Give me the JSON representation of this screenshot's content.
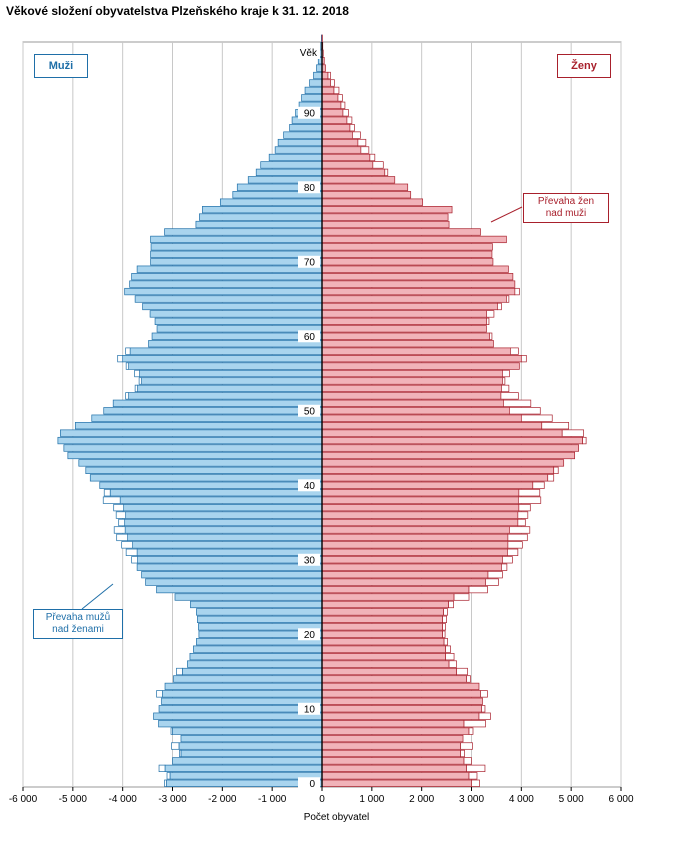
{
  "title": "Věkové složení obyvatelstva Plzeňského kraje k 31. 12. 2018",
  "legend": {
    "male": "Muži",
    "female": "Ženy",
    "male_color": "#a9d4ee",
    "female_color": "#f1b3b9",
    "male_edge": "#1f6fa8",
    "female_edge": "#a8202c"
  },
  "annotations": {
    "female_surplus": [
      "Převaha žen",
      "nad muži"
    ],
    "male_surplus": [
      "Převaha mužů",
      "nad ženami"
    ]
  },
  "chart_data": {
    "type": "bar",
    "orientation": "horizontal-population-pyramid",
    "title": "Věkové složení obyvatelstva Plzeňského kraje k 31. 12. 2018",
    "xlabel": "Počet obyvatel",
    "ylabel": "Věk",
    "xlim": [
      -6000,
      6000
    ],
    "ylim": [
      0,
      100
    ],
    "x_ticks": [
      -6000,
      -5000,
      -4000,
      -3000,
      -2000,
      -1000,
      0,
      1000,
      2000,
      3000,
      4000,
      5000,
      6000
    ],
    "x_tick_labels": [
      "-6 000",
      "-5 000",
      "-4 000",
      "-3 000",
      "-2 000",
      "-1 000",
      "0",
      "1 000",
      "2 000",
      "3 000",
      "4 000",
      "5 000",
      "6 000"
    ],
    "y_ticks": [
      0,
      10,
      20,
      30,
      40,
      50,
      60,
      70,
      80,
      90
    ],
    "y_tick_labels": [
      "0",
      "10",
      "20",
      "30",
      "40",
      "50",
      "60",
      "70",
      "80",
      "90"
    ],
    "grid": "vertical",
    "ages": [
      0,
      1,
      2,
      3,
      4,
      5,
      6,
      7,
      8,
      9,
      10,
      11,
      12,
      13,
      14,
      15,
      16,
      17,
      18,
      19,
      20,
      21,
      22,
      23,
      24,
      25,
      26,
      27,
      28,
      29,
      30,
      31,
      32,
      33,
      34,
      35,
      36,
      37,
      38,
      39,
      40,
      41,
      42,
      43,
      44,
      45,
      46,
      47,
      48,
      49,
      50,
      51,
      52,
      53,
      54,
      55,
      56,
      57,
      58,
      59,
      60,
      61,
      62,
      63,
      64,
      65,
      66,
      67,
      68,
      69,
      70,
      71,
      72,
      73,
      74,
      75,
      76,
      77,
      78,
      79,
      80,
      81,
      82,
      83,
      84,
      85,
      86,
      87,
      88,
      89,
      90,
      91,
      92,
      93,
      94,
      95,
      96,
      97,
      98,
      99,
      100
    ],
    "series": [
      {
        "name": "Muži",
        "values": [
          3120,
          3050,
          3150,
          3000,
          2830,
          2870,
          2830,
          3000,
          3280,
          3380,
          3270,
          3220,
          3200,
          3150,
          2980,
          2800,
          2700,
          2650,
          2580,
          2520,
          2470,
          2480,
          2500,
          2520,
          2640,
          2950,
          3320,
          3540,
          3620,
          3710,
          3700,
          3710,
          3800,
          3900,
          3950,
          3960,
          3940,
          3980,
          4050,
          4250,
          4460,
          4650,
          4740,
          4880,
          5100,
          5180,
          5300,
          5250,
          4950,
          4620,
          4380,
          4190,
          3880,
          3700,
          3620,
          3660,
          3880,
          4000,
          3850,
          3480,
          3410,
          3310,
          3350,
          3450,
          3600,
          3750,
          3960,
          3860,
          3820,
          3710,
          3440,
          3440,
          3430,
          3440,
          3160,
          2530,
          2460,
          2400,
          2040,
          1790,
          1700,
          1480,
          1320,
          1230,
          1060,
          940,
          880,
          770,
          650,
          600,
          530,
          460,
          410,
          340,
          250,
          170,
          110,
          75,
          45,
          25,
          12
        ],
        "excess": [
          40,
          60,
          120,
          0,
          30,
          150,
          0,
          30,
          0,
          0,
          0,
          0,
          120,
          0,
          0,
          120,
          0,
          0,
          0,
          0,
          0,
          0,
          0,
          0,
          0,
          0,
          0,
          0,
          0,
          0,
          120,
          220,
          220,
          220,
          220,
          120,
          190,
          200,
          340,
          120,
          0,
          0,
          0,
          0,
          0,
          0,
          0,
          0,
          0,
          0,
          0,
          0,
          60,
          50,
          50,
          100,
          50,
          100,
          90,
          0,
          0,
          0,
          0,
          0,
          0,
          0,
          0,
          0,
          0,
          0,
          0,
          0,
          0,
          0,
          0,
          0,
          0,
          0,
          0,
          0,
          0,
          0,
          0,
          0,
          0,
          0,
          0,
          0,
          0,
          0,
          0,
          0,
          0,
          0,
          0,
          0,
          0,
          0,
          0,
          0,
          0
        ]
      },
      {
        "name": "Ženy",
        "values": [
          3000,
          2950,
          2900,
          2850,
          2780,
          2780,
          2830,
          2950,
          2850,
          3150,
          3200,
          3220,
          3180,
          3150,
          2900,
          2700,
          2550,
          2480,
          2480,
          2450,
          2420,
          2420,
          2420,
          2440,
          2540,
          2650,
          2950,
          3280,
          3330,
          3600,
          3620,
          3720,
          3730,
          3730,
          3760,
          3930,
          3930,
          3950,
          3940,
          3950,
          4230,
          4530,
          4650,
          4850,
          5070,
          5150,
          5230,
          4820,
          4410,
          4000,
          3760,
          3640,
          3590,
          3600,
          3620,
          3620,
          3960,
          4000,
          3780,
          3440,
          3360,
          3300,
          3300,
          3300,
          3520,
          3700,
          3870,
          3870,
          3830,
          3740,
          3430,
          3410,
          3420,
          3700,
          3180,
          2550,
          2530,
          2610,
          2020,
          1780,
          1720,
          1460,
          1260,
          1020,
          960,
          780,
          720,
          610,
          560,
          500,
          420,
          380,
          320,
          240,
          170,
          120,
          70,
          45,
          25,
          15,
          8
        ],
        "excess": [
          0,
          0,
          0,
          0,
          0,
          0,
          0,
          0,
          0,
          0,
          0,
          0,
          0,
          0,
          0,
          0,
          0,
          0,
          0,
          0,
          0,
          0,
          0,
          0,
          0,
          0,
          0,
          0,
          0,
          0,
          0,
          0,
          0,
          0,
          0,
          0,
          0,
          0,
          0,
          0,
          0,
          0,
          0,
          0,
          0,
          0,
          0,
          0,
          0,
          0,
          0,
          0,
          0,
          0,
          0,
          0,
          0,
          0,
          0,
          0,
          0,
          0,
          0,
          0,
          0,
          0,
          0,
          0,
          0,
          0,
          0,
          0,
          0,
          0,
          0,
          0,
          0,
          0,
          0,
          0,
          0,
          0,
          0,
          0,
          0,
          0,
          0,
          0,
          0,
          0,
          0,
          0,
          0,
          0,
          0,
          0,
          0,
          0,
          0,
          0,
          0
        ]
      }
    ]
  }
}
